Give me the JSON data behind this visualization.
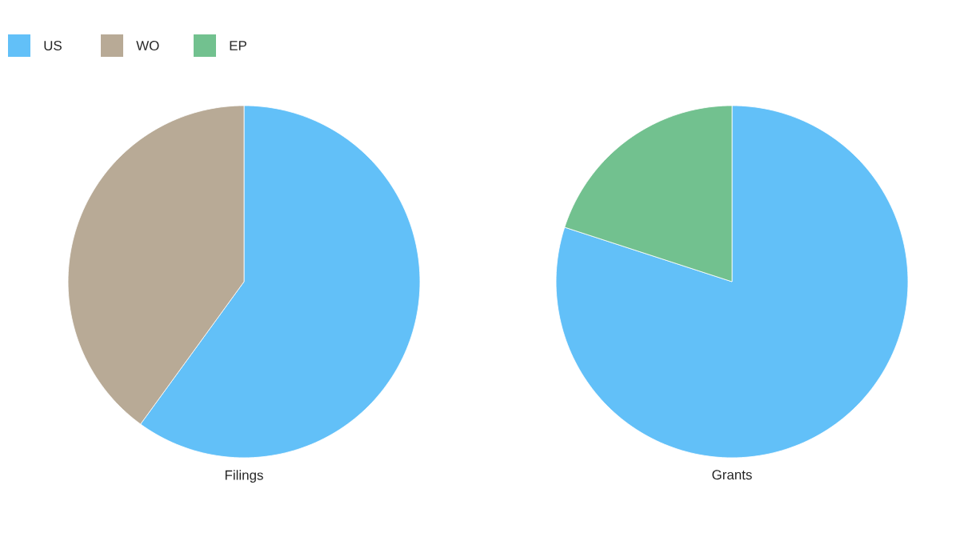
{
  "chart_data": [
    {
      "type": "pie",
      "title": "Filings",
      "categories": [
        "US",
        "WO",
        "EP"
      ],
      "values": [
        60,
        40,
        0
      ],
      "colors": [
        "#62c0f8",
        "#b8aa96",
        "#72c18f"
      ],
      "legend": "top left"
    },
    {
      "type": "pie",
      "title": "Grants",
      "categories": [
        null,
        null,
        null
      ],
      "values": [
        80,
        0,
        20
      ],
      "colors": [
        "#62c0f8",
        "#b8aa96",
        "#72c18f"
      ]
    }
  ]
}
